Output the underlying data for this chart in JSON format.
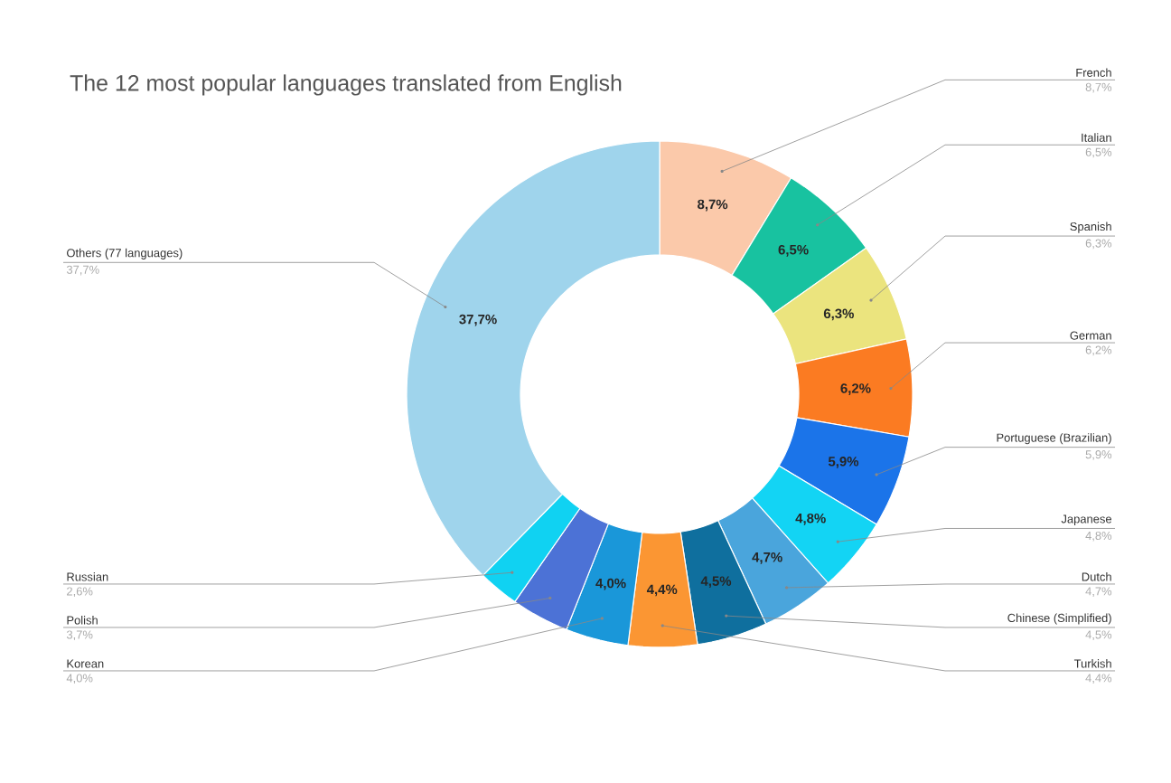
{
  "chart_data": {
    "type": "donut",
    "title": "The 12 most popular languages translated from English",
    "categories": [
      "French",
      "Italian",
      "Spanish",
      "German",
      "Portuguese (Brazilian)",
      "Japanese",
      "Dutch",
      "Chinese (Simplified)",
      "Turkish",
      "Korean",
      "Polish",
      "Russian",
      "Others (77 languages)"
    ],
    "values": [
      8.7,
      6.5,
      6.3,
      6.2,
      5.9,
      4.8,
      4.7,
      4.5,
      4.4,
      4.0,
      3.7,
      2.6,
      37.7
    ],
    "colors": [
      "#fbc9aa",
      "#18c2a0",
      "#ebe47e",
      "#fb7b22",
      "#1b74e9",
      "#13d4f4",
      "#4aa5dc",
      "#0f6f9e",
      "#fb9633",
      "#1a97d9",
      "#4c72d6",
      "#10d2f2",
      "#9fd4ec"
    ],
    "value_labels": [
      "8,7%",
      "6,5%",
      "6,3%",
      "6,2%",
      "5,9%",
      "4,8%",
      "4,7%",
      "4,5%",
      "4,4%",
      "4,0%",
      "3,7%",
      "2,6%",
      "37,7%"
    ]
  }
}
